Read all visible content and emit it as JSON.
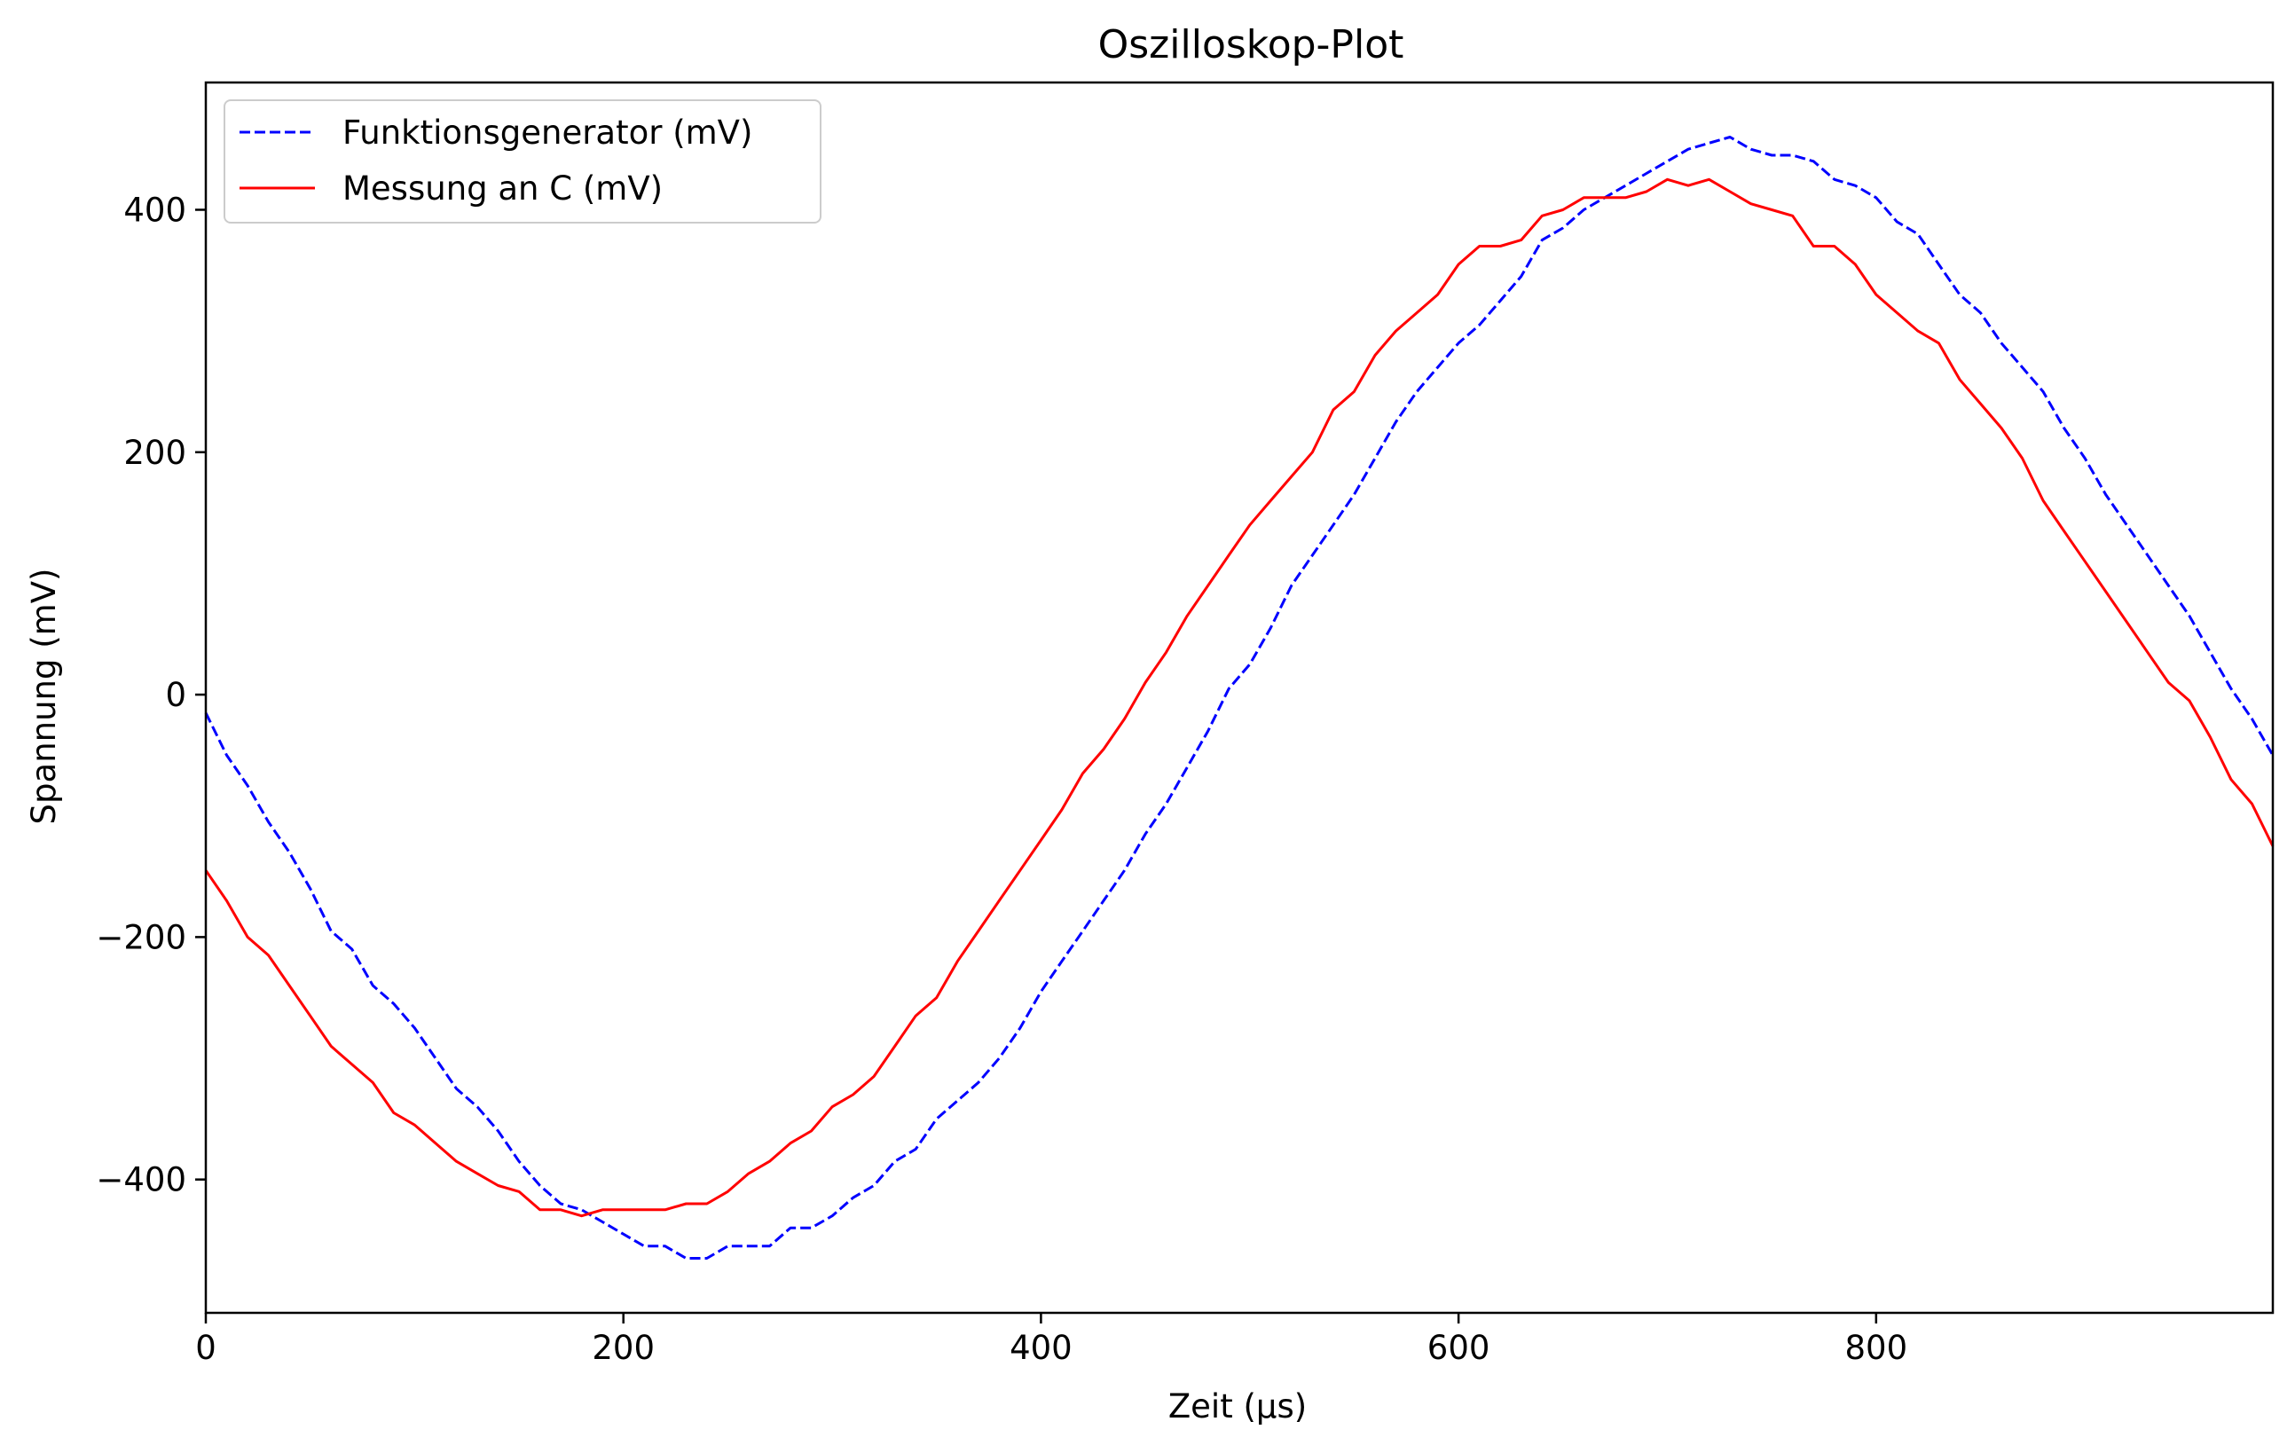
{
  "chart_data": {
    "type": "line",
    "title": "Oszilloskop-Plot",
    "xlabel": "Zeit (µs)",
    "ylabel": "Spannung (mV)",
    "xlim": [
      0,
      990
    ],
    "ylim": [
      -510,
      505
    ],
    "x_ticks": [
      0,
      200,
      400,
      600,
      800
    ],
    "x_tick_labels": [
      "0",
      "200",
      "400",
      "600",
      "800"
    ],
    "y_ticks": [
      400,
      200,
      0,
      -200,
      -400
    ],
    "y_tick_labels": [
      "400",
      "200",
      "0",
      "−200",
      "−400"
    ],
    "grid": false,
    "legend_position": "upper-left",
    "x": [
      0,
      10,
      20,
      30,
      40,
      50,
      60,
      70,
      80,
      90,
      100,
      110,
      120,
      130,
      140,
      150,
      160,
      170,
      180,
      190,
      200,
      210,
      220,
      230,
      240,
      250,
      260,
      270,
      280,
      290,
      300,
      310,
      320,
      330,
      340,
      350,
      360,
      370,
      380,
      390,
      400,
      410,
      420,
      430,
      440,
      450,
      460,
      470,
      480,
      490,
      500,
      510,
      520,
      530,
      540,
      550,
      560,
      570,
      580,
      590,
      600,
      610,
      620,
      630,
      640,
      650,
      660,
      670,
      680,
      690,
      700,
      710,
      720,
      730,
      740,
      750,
      760,
      770,
      780,
      790,
      800,
      810,
      820,
      830,
      840,
      850,
      860,
      870,
      880,
      890,
      900,
      910,
      920,
      930,
      940,
      950,
      960,
      970,
      980,
      990
    ],
    "series": [
      {
        "name": "Funktionsgenerator (mV)",
        "color": "#0000ff",
        "style": "dashed",
        "values": [
          -15,
          -50,
          -75,
          -105,
          -130,
          -160,
          -195,
          -210,
          -240,
          -255,
          -275,
          -300,
          -325,
          -340,
          -360,
          -385,
          -405,
          -420,
          -425,
          -435,
          -445,
          -455,
          -455,
          -465,
          -465,
          -455,
          -455,
          -455,
          -440,
          -440,
          -430,
          -415,
          -405,
          -385,
          -375,
          -350,
          -335,
          -320,
          -300,
          -275,
          -245,
          -220,
          -195,
          -170,
          -145,
          -115,
          -90,
          -60,
          -30,
          5,
          25,
          55,
          90,
          115,
          140,
          165,
          195,
          225,
          250,
          270,
          290,
          305,
          325,
          345,
          375,
          385,
          400,
          410,
          420,
          430,
          440,
          450,
          455,
          460,
          450,
          445,
          445,
          440,
          425,
          420,
          410,
          390,
          380,
          355,
          330,
          315,
          290,
          270,
          250,
          220,
          195,
          165,
          140,
          115,
          90,
          65,
          35,
          5,
          -20,
          -50
        ]
      },
      {
        "name": "Messung an C (mV)",
        "color": "#ff0000",
        "style": "solid",
        "values": [
          -145,
          -170,
          -200,
          -215,
          -240,
          -265,
          -290,
          -305,
          -320,
          -345,
          -355,
          -370,
          -385,
          -395,
          -405,
          -410,
          -425,
          -425,
          -430,
          -425,
          -425,
          -425,
          -425,
          -420,
          -420,
          -410,
          -395,
          -385,
          -370,
          -360,
          -340,
          -330,
          -315,
          -290,
          -265,
          -250,
          -220,
          -195,
          -170,
          -145,
          -120,
          -95,
          -65,
          -45,
          -20,
          10,
          35,
          65,
          90,
          115,
          140,
          160,
          180,
          200,
          235,
          250,
          280,
          300,
          315,
          330,
          355,
          370,
          370,
          375,
          395,
          400,
          410,
          410,
          410,
          415,
          425,
          420,
          425,
          415,
          405,
          400,
          395,
          370,
          370,
          355,
          330,
          315,
          300,
          290,
          260,
          240,
          220,
          195,
          160,
          135,
          110,
          85,
          60,
          35,
          10,
          -5,
          -35,
          -70,
          -90,
          -125
        ]
      }
    ]
  }
}
